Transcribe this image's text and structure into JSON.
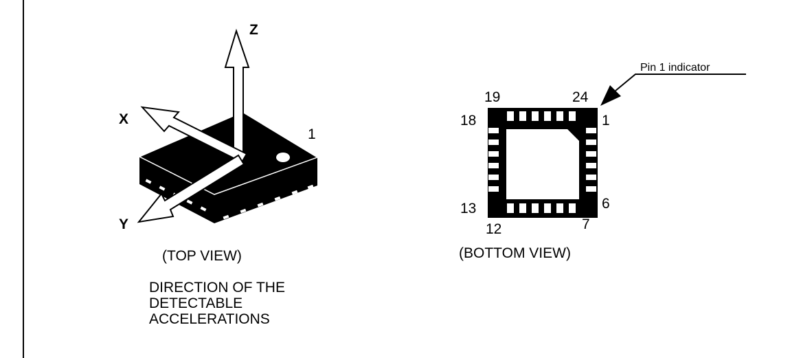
{
  "top_view": {
    "axis_labels": {
      "z": "Z",
      "x": "X",
      "y": "Y"
    },
    "pin_one_label": "1",
    "view_caption": "(TOP VIEW)",
    "description_lines": [
      "DIRECTION OF THE",
      "DETECTABLE",
      "ACCELERATIONS"
    ]
  },
  "bottom_view": {
    "pin_numbers": {
      "p19": "19",
      "p24": "24",
      "p18": "18",
      "p1": "1",
      "p13": "13",
      "p6": "6",
      "p12": "12",
      "p7": "7"
    },
    "pin_one_indicator": "Pin 1 indicator",
    "view_caption": "(BOTTOM VIEW)"
  },
  "colors": {
    "ink": "#000000",
    "paper": "#ffffff"
  }
}
